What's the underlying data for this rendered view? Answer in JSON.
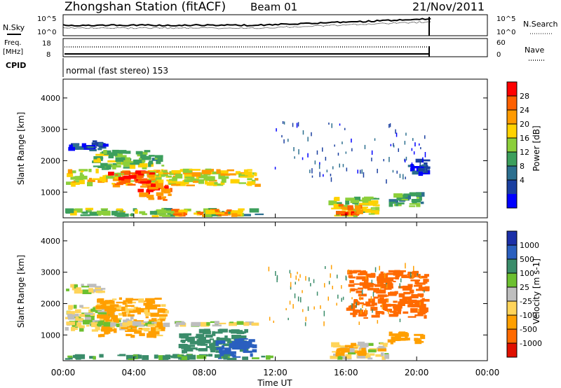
{
  "header": {
    "station": "Zhongshan Station (fitACF)",
    "beam": "Beam 01",
    "date": "21/Nov/2011"
  },
  "noise_panel": {
    "left_label": "N.Sky",
    "left_ticks": [
      "10^5",
      "10^0"
    ],
    "right_label": "N.Search",
    "right_ticks": [
      "10^5",
      "10^0"
    ]
  },
  "freq_panel": {
    "left_label_line1": "Freq.",
    "left_label_line2": "[MHz]",
    "left_ticks": [
      "18",
      "8"
    ],
    "right_label": "Nave",
    "right_ticks": [
      "60",
      "0"
    ]
  },
  "cpid_panel": {
    "label": "CPID",
    "text": "normal (fast stereo) 153"
  },
  "x_axis": {
    "label": "Time UT",
    "ticks": [
      "00:00",
      "04:00",
      "08:00",
      "12:00",
      "16:00",
      "20:00",
      "00:00"
    ]
  },
  "power_colorbar": {
    "label": "Power [dB]",
    "ticks": [
      "28",
      "24",
      "20",
      "16",
      "12",
      "8",
      "4"
    ],
    "colors": [
      "#ff0000",
      "#ff6000",
      "#ff9a00",
      "#ffd200",
      "#8ccf3a",
      "#3c9f5c",
      "#2c6f8f",
      "#1a3fa0",
      "#0000ff"
    ]
  },
  "velocity_colorbar": {
    "label": "Velocity [m s-1]",
    "ticks": [
      "1000",
      "500",
      "100",
      "25",
      "-25",
      "-100",
      "-500",
      "-1000"
    ],
    "colors": [
      "#1b2fa8",
      "#2a5fbf",
      "#3a8c6a",
      "#6cc030",
      "#bebebe",
      "#ffd45a",
      "#ff9f00",
      "#ff6a00",
      "#e01000"
    ]
  },
  "chart_data": [
    {
      "type": "heatmap",
      "title": "Zhongshan Station (fitACF) Beam 01 21/Nov/2011",
      "quantity": "Power",
      "xlabel": "Time UT",
      "ylabel": "Slant Range [km]",
      "xlim": [
        0,
        24
      ],
      "ylim": [
        180,
        4600
      ],
      "yticks": [
        1000,
        2000,
        3000,
        4000
      ],
      "colorbar_ticks": [
        4,
        8,
        12,
        16,
        20,
        24,
        28
      ],
      "data_extent_hours": [
        0,
        20.8
      ],
      "regions": [
        {
          "t": [
            0.1,
            2.7
          ],
          "r": [
            2300,
            2650
          ],
          "level": 6
        },
        {
          "t": [
            1.6,
            5.8
          ],
          "r": [
            1700,
            2350
          ],
          "level": 14
        },
        {
          "t": [
            0.1,
            11.3
          ],
          "r": [
            1150,
            1750
          ],
          "level": 18
        },
        {
          "t": [
            2.5,
            5.2
          ],
          "r": [
            1200,
            1700
          ],
          "level": 26
        },
        {
          "t": [
            4.2,
            6.2
          ],
          "r": [
            700,
            1350
          ],
          "level": 24
        },
        {
          "t": [
            0.1,
            11.5
          ],
          "r": [
            200,
            500
          ],
          "level": 14
        },
        {
          "t": [
            6.1,
            10.2
          ],
          "r": [
            200,
            480
          ],
          "level": 22
        },
        {
          "t": [
            15.0,
            18.0
          ],
          "r": [
            200,
            900
          ],
          "level": 16
        },
        {
          "t": [
            15.4,
            17.0
          ],
          "r": [
            220,
            650
          ],
          "level": 24
        },
        {
          "t": [
            18.2,
            20.5
          ],
          "r": [
            500,
            1000
          ],
          "level": 12
        },
        {
          "t": [
            19.5,
            20.8
          ],
          "r": [
            1500,
            2100
          ],
          "level": 6
        }
      ]
    },
    {
      "type": "heatmap",
      "quantity": "Velocity",
      "xlabel": "Time UT",
      "ylabel": "Slant Range [km]",
      "xlim": [
        0,
        24
      ],
      "ylim": [
        180,
        4600
      ],
      "yticks": [
        1000,
        2000,
        3000,
        4000
      ],
      "colorbar_ticks": [
        1000,
        500,
        100,
        25,
        -25,
        -100,
        -500,
        -1000
      ],
      "data_extent_hours": [
        0,
        20.8
      ],
      "regions": [
        {
          "t": [
            0.1,
            2.5
          ],
          "r": [
            2300,
            2650
          ],
          "velocity": 0
        },
        {
          "t": [
            0.1,
            4.0
          ],
          "r": [
            1100,
            2000
          ],
          "velocity": 0
        },
        {
          "t": [
            1.8,
            6.0
          ],
          "r": [
            900,
            2200
          ],
          "velocity": -150
        },
        {
          "t": [
            0.1,
            11.3
          ],
          "r": [
            1250,
            1450
          ],
          "velocity": 0
        },
        {
          "t": [
            6.5,
            10.5
          ],
          "r": [
            400,
            1200
          ],
          "velocity": 200
        },
        {
          "t": [
            8.5,
            11.0
          ],
          "r": [
            200,
            900
          ],
          "velocity": 800
        },
        {
          "t": [
            0.1,
            12.0
          ],
          "r": [
            200,
            400
          ],
          "velocity": 150
        },
        {
          "t": [
            15.0,
            18.5
          ],
          "r": [
            200,
            800
          ],
          "velocity": -40
        },
        {
          "t": [
            15.4,
            17.2
          ],
          "r": [
            300,
            600
          ],
          "velocity": -200
        },
        {
          "t": [
            18.2,
            20.6
          ],
          "r": [
            700,
            1150
          ],
          "velocity": -300
        },
        {
          "t": [
            16.0,
            20.8
          ],
          "r": [
            1500,
            3100
          ],
          "velocity": -600
        }
      ]
    }
  ]
}
